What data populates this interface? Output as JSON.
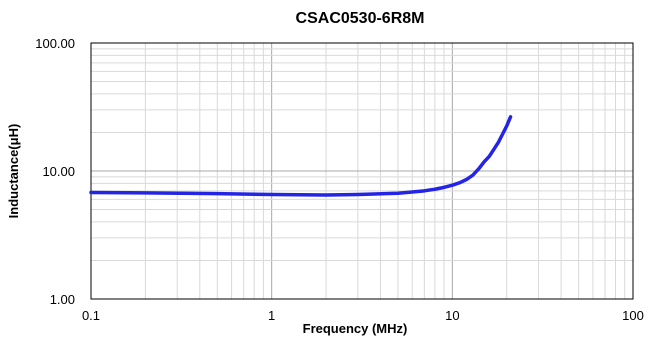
{
  "chart_data": {
    "type": "line",
    "title": "CSAC0530-6R8M",
    "xlabel": "Frequency  (MHz)",
    "ylabel": "Inductance(μH)",
    "x_scale": "log",
    "y_scale": "log",
    "xlim": [
      0.1,
      100
    ],
    "ylim": [
      1,
      100
    ],
    "x_ticks": [
      "0.1",
      "1",
      "10",
      "100"
    ],
    "y_ticks": [
      "1.00",
      "10.00",
      "100.00"
    ],
    "grid": true,
    "legend": "none",
    "series": [
      {
        "color": "#2424e6",
        "x": [
          0.1,
          0.2,
          0.5,
          1,
          2,
          3,
          5,
          6,
          7,
          8,
          9,
          10,
          11,
          12,
          13,
          14,
          15,
          16,
          17,
          18,
          19,
          20,
          21
        ],
        "y": [
          6.8,
          6.75,
          6.65,
          6.55,
          6.5,
          6.55,
          6.7,
          6.85,
          7.0,
          7.2,
          7.45,
          7.75,
          8.1,
          8.6,
          9.3,
          10.4,
          11.8,
          13.0,
          14.8,
          16.8,
          19.5,
          22.5,
          26.5
        ]
      }
    ]
  }
}
